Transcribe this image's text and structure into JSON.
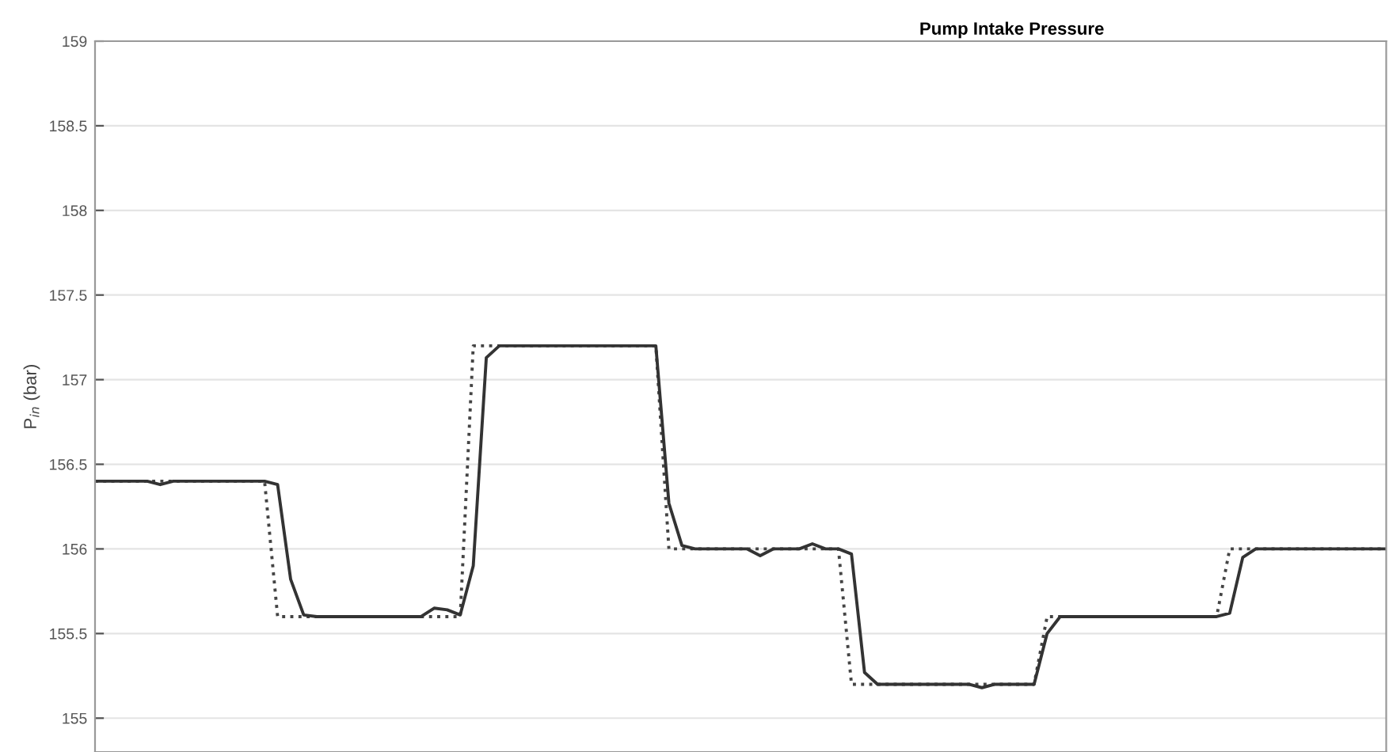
{
  "chart_data": {
    "type": "line",
    "title": "Pump Intake Pressure",
    "ylabel": "P$_{in}$ (bar)",
    "categories": [
      null,
      null,
      null,
      null,
      null,
      null,
      null,
      null,
      null,
      null,
      null,
      null,
      null,
      null,
      null,
      null,
      null,
      null,
      null,
      null,
      null,
      null,
      null,
      null,
      null,
      null,
      null,
      null,
      null,
      null,
      null,
      null,
      null,
      null,
      null,
      null,
      null,
      null,
      null,
      null,
      null,
      null,
      null,
      null,
      null,
      null,
      null,
      null,
      null,
      null,
      null,
      null,
      null,
      null,
      null,
      null,
      null,
      null,
      null,
      null,
      null,
      null,
      null,
      null,
      null,
      null,
      null,
      null,
      null,
      null,
      null,
      null,
      null,
      null,
      null,
      null,
      null,
      null,
      null,
      null,
      null,
      null,
      null,
      null,
      null,
      null,
      null,
      null,
      null,
      null,
      null,
      null,
      null,
      null,
      null,
      null,
      null,
      null,
      null,
      null
    ],
    "series": [
      {
        "color": "#444444",
        "line_style": "dotted",
        "values": [
          156.4,
          156.4,
          156.4,
          156.4,
          156.4,
          156.4,
          156.4,
          156.4,
          156.4,
          156.4,
          156.4,
          156.4,
          156.4,
          156.4,
          155.6,
          155.6,
          155.6,
          155.6,
          155.6,
          155.6,
          155.6,
          155.6,
          155.6,
          155.6,
          155.6,
          155.6,
          155.6,
          155.6,
          155.6,
          157.2,
          157.2,
          157.2,
          157.2,
          157.2,
          157.2,
          157.2,
          157.2,
          157.2,
          157.2,
          157.2,
          157.2,
          157.2,
          157.2,
          157.2,
          156.0,
          156.0,
          156.0,
          156.0,
          156.0,
          156.0,
          156.0,
          156.0,
          156.0,
          156.0,
          156.0,
          156.0,
          156.0,
          156.0,
          155.2,
          155.2,
          155.2,
          155.2,
          155.2,
          155.2,
          155.2,
          155.2,
          155.2,
          155.2,
          155.2,
          155.2,
          155.2,
          155.2,
          155.2,
          155.6,
          155.6,
          155.6,
          155.6,
          155.6,
          155.6,
          155.6,
          155.6,
          155.6,
          155.6,
          155.6,
          155.6,
          155.6,
          155.6,
          156.0,
          156.0,
          156.0,
          156.0,
          156.0,
          156.0,
          156.0,
          156.0,
          156.0,
          156.0,
          156.0,
          156.0,
          156.0
        ]
      },
      {
        "color": "#333333",
        "line_style": "solid",
        "values": [
          156.4,
          156.4,
          156.4,
          156.4,
          156.4,
          156.38,
          156.4,
          156.4,
          156.4,
          156.4,
          156.4,
          156.4,
          156.4,
          156.4,
          156.38,
          155.82,
          155.61,
          155.6,
          155.6,
          155.6,
          155.6,
          155.6,
          155.6,
          155.6,
          155.6,
          155.6,
          155.65,
          155.64,
          155.61,
          155.9,
          157.13,
          157.2,
          157.2,
          157.2,
          157.2,
          157.2,
          157.2,
          157.2,
          157.2,
          157.2,
          157.2,
          157.2,
          157.2,
          157.2,
          156.27,
          156.02,
          156.0,
          156.0,
          156.0,
          156.0,
          156.0,
          155.96,
          156.0,
          156.0,
          156.0,
          156.03,
          156.0,
          156.0,
          155.97,
          155.27,
          155.2,
          155.2,
          155.2,
          155.2,
          155.2,
          155.2,
          155.2,
          155.2,
          155.18,
          155.2,
          155.2,
          155.2,
          155.2,
          155.5,
          155.6,
          155.6,
          155.6,
          155.6,
          155.6,
          155.6,
          155.6,
          155.6,
          155.6,
          155.6,
          155.6,
          155.6,
          155.6,
          155.62,
          155.95,
          156.0,
          156.0,
          156.0,
          156.0,
          156.0,
          156.0,
          156.0,
          156.0,
          156.0,
          156.0,
          156.0
        ]
      }
    ],
    "ylim": [
      154.8,
      159
    ],
    "yticks": [
      155,
      155.5,
      156,
      156.5,
      157,
      157.5,
      158,
      158.5,
      159
    ],
    "grid": "y",
    "tick_labels": "y",
    "marker": "none"
  }
}
